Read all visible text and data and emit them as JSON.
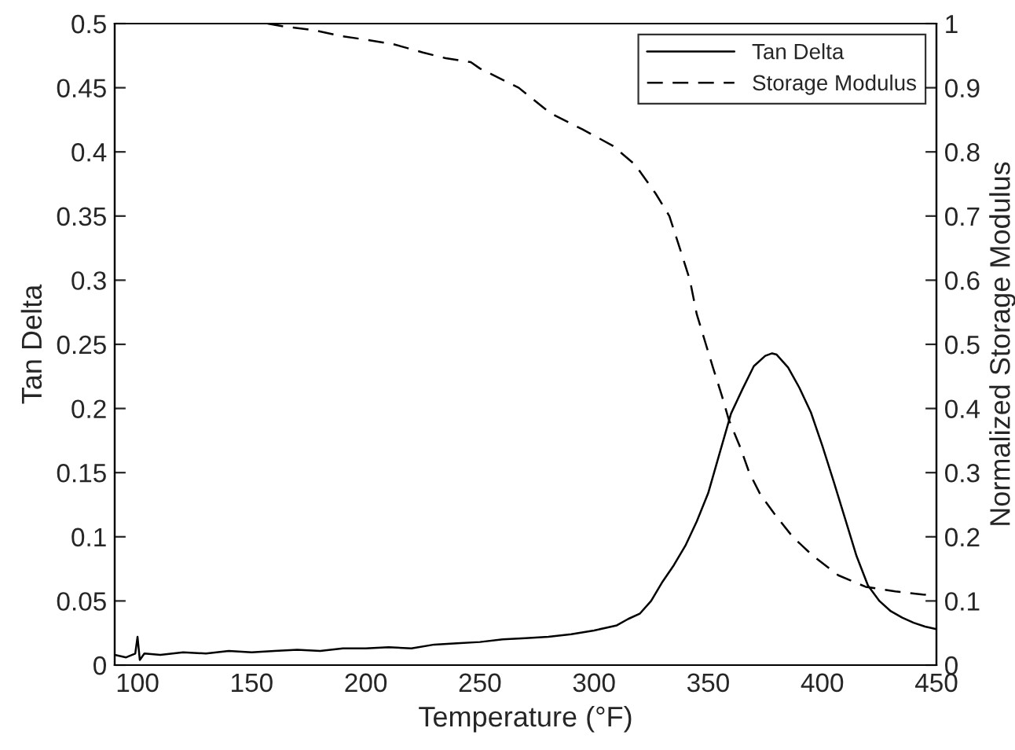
{
  "chart_data": {
    "type": "line",
    "xlabel": "Temperature (°F)",
    "ylabel": "Tan Delta",
    "y2label": "Normalized Storage Modulus",
    "xlim": [
      90,
      450
    ],
    "xticks": [
      100,
      150,
      200,
      250,
      300,
      350,
      400,
      450
    ],
    "ylim": [
      0,
      0.5
    ],
    "yticks": [
      0,
      0.05,
      0.1,
      0.15,
      0.2,
      0.25,
      0.3,
      0.35,
      0.4,
      0.45,
      0.5
    ],
    "y2lim": [
      0,
      1
    ],
    "y2ticks": [
      0,
      0.1,
      0.2,
      0.3,
      0.4,
      0.5,
      0.6,
      0.7,
      0.8,
      0.9,
      1
    ],
    "grid": false,
    "legend": "top right",
    "series": [
      {
        "name": "Tan Delta",
        "color": "#000000",
        "line_style": "solid",
        "axis": "y",
        "x": [
          90,
          95,
          99,
          100,
          101,
          103,
          110,
          120,
          130,
          140,
          150,
          160,
          170,
          180,
          190,
          200,
          210,
          220,
          230,
          240,
          250,
          260,
          270,
          280,
          290,
          300,
          305,
          310,
          315,
          320,
          325,
          330,
          335,
          340,
          345,
          350,
          355,
          360,
          365,
          370,
          375,
          378,
          380,
          385,
          390,
          395,
          400,
          405,
          410,
          415,
          420,
          425,
          430,
          435,
          440,
          445,
          450
        ],
        "values": [
          0.008,
          0.006,
          0.009,
          0.022,
          0.004,
          0.009,
          0.008,
          0.01,
          0.009,
          0.011,
          0.01,
          0.011,
          0.012,
          0.011,
          0.013,
          0.013,
          0.014,
          0.013,
          0.016,
          0.017,
          0.018,
          0.02,
          0.021,
          0.022,
          0.024,
          0.027,
          0.029,
          0.031,
          0.036,
          0.04,
          0.05,
          0.065,
          0.078,
          0.093,
          0.112,
          0.134,
          0.165,
          0.196,
          0.215,
          0.233,
          0.241,
          0.243,
          0.242,
          0.232,
          0.216,
          0.197,
          0.171,
          0.143,
          0.114,
          0.085,
          0.062,
          0.05,
          0.042,
          0.037,
          0.033,
          0.03,
          0.028
        ]
      },
      {
        "name": "Storage Modulus",
        "color": "#000000",
        "line_style": "dashed",
        "axis": "y2",
        "x": [
          157,
          165,
          177,
          190,
          200,
          212,
          225,
          235,
          246,
          250,
          267,
          281,
          295,
          308,
          318,
          327,
          333,
          338,
          342,
          345,
          349,
          352,
          356,
          359,
          364,
          368,
          373,
          379,
          387,
          396,
          407,
          419,
          432,
          444,
          450
        ],
        "values": [
          1.0,
          0.995,
          0.99,
          0.98,
          0.975,
          0.968,
          0.955,
          0.946,
          0.94,
          0.93,
          0.9,
          0.86,
          0.835,
          0.81,
          0.78,
          0.735,
          0.7,
          0.645,
          0.6,
          0.547,
          0.5,
          0.465,
          0.42,
          0.383,
          0.34,
          0.3,
          0.265,
          0.236,
          0.2,
          0.17,
          0.14,
          0.122,
          0.115,
          0.11,
          0.108
        ]
      }
    ]
  }
}
